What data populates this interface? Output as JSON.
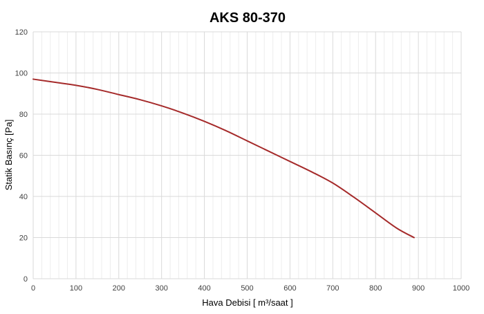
{
  "chart_data": {
    "type": "line",
    "title": "AKS 80-370",
    "xlabel": "Hava Debisi [ m³/saat ]",
    "ylabel": "Statik Basınç [Pa]",
    "xlim": [
      0,
      1000
    ],
    "ylim": [
      0,
      120
    ],
    "xticks": [
      0,
      100,
      200,
      300,
      400,
      500,
      600,
      700,
      800,
      900,
      1000
    ],
    "yticks": [
      0,
      20,
      40,
      60,
      80,
      100,
      120
    ],
    "grid": {
      "major": true,
      "minor_x": true,
      "minor_x_step": 20
    },
    "legend": "none",
    "colors": {
      "series": "#A52A2A",
      "major_grid": "#D9D9D9",
      "minor_grid": "#EDEDED"
    },
    "series": [
      {
        "x": [
          0,
          50,
          100,
          150,
          200,
          250,
          300,
          350,
          400,
          450,
          500,
          550,
          600,
          650,
          700,
          750,
          800,
          850,
          890
        ],
        "values": [
          97,
          95.5,
          94,
          92,
          89.5,
          87,
          84,
          80.5,
          76.5,
          72,
          67,
          62,
          57,
          52,
          46.5,
          39.5,
          32,
          24.5,
          20
        ]
      }
    ]
  }
}
